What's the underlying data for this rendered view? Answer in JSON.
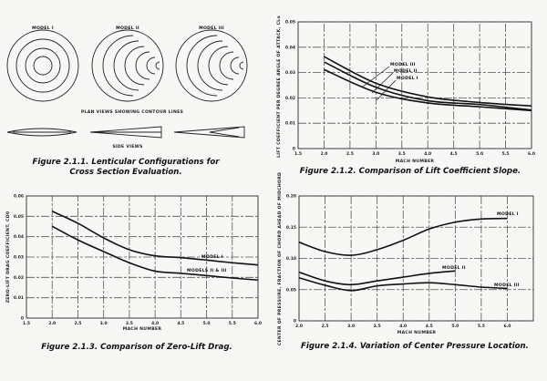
{
  "figure_2_1_1": {
    "model_labels": [
      "MODEL I",
      "MODEL II",
      "MODEL III"
    ],
    "plan_views_label": "PLAN VIEWS SHOWING CONTOUR LINES",
    "side_views_label": "SIDE VIEWS",
    "caption_line1": "Figure 2.1.1.  Lenticular Configurations for",
    "caption_line2": "Cross Section Evaluation."
  },
  "chart_data": [
    {
      "type": "line",
      "title": "Figure 2.1.2.  Comparison of Lift Coefficient Slope.",
      "xlabel": "MACH NUMBER",
      "ylabel": "LIFT COEFFICIENT PER DEGREE ANGLE OF ATTACK, CLα",
      "xlim": [
        1.5,
        6.0
      ],
      "ylim": [
        0,
        0.05
      ],
      "xticks": [
        "1.5",
        "2.0",
        "2.5",
        "3.0",
        "3.5",
        "4.0",
        "4.5",
        "5.0",
        "5.5",
        "6.0"
      ],
      "yticks": [
        "0",
        "0.01",
        "0.02",
        "0.03",
        "0.04",
        "0.05"
      ],
      "grid": true,
      "x": [
        2.0,
        3.0,
        4.0,
        5.0,
        6.0
      ],
      "series": [
        {
          "name": "MODEL III",
          "values": [
            0.0363,
            0.0258,
            0.0204,
            0.0182,
            0.0168
          ]
        },
        {
          "name": "MODEL II",
          "values": [
            0.0342,
            0.0242,
            0.0189,
            0.0174,
            0.0152
          ]
        },
        {
          "name": "MODEL I",
          "values": [
            0.0312,
            0.0222,
            0.018,
            0.0165,
            0.015
          ]
        }
      ]
    },
    {
      "type": "line",
      "title": "Figure 2.1.3.  Comparison of Zero-Lift Drag.",
      "xlabel": "MACH NUMBER",
      "ylabel": "ZERO-LIFT DRAG COEFFICIENT, CD0",
      "xlim": [
        1.5,
        6.0
      ],
      "ylim": [
        0,
        0.06
      ],
      "xticks": [
        "1.5",
        "2.0",
        "2.5",
        "3.0",
        "3.5",
        "4.0",
        "4.5",
        "5.0",
        "5.5",
        "6.0"
      ],
      "yticks": [
        "0",
        "0.01",
        "0.02",
        "0.03",
        "0.04",
        "0.05",
        "0.06"
      ],
      "grid": true,
      "x": [
        2.0,
        2.5,
        3.0,
        3.5,
        4.0,
        4.5,
        5.0,
        5.5,
        6.0
      ],
      "series": [
        {
          "name": "MODEL I",
          "values": [
            0.0525,
            0.0466,
            0.0394,
            0.0336,
            0.0306,
            0.0297,
            0.0285,
            0.0272,
            0.0261
          ]
        },
        {
          "name": "MODELS II & III",
          "values": [
            0.0451,
            0.0384,
            0.0327,
            0.0272,
            0.0231,
            0.022,
            0.0209,
            0.0197,
            0.0187
          ]
        }
      ]
    },
    {
      "type": "line",
      "title": "Figure 2.1.4.  Variation of Center Pressure Location.",
      "xlabel": "MACH NUMBER",
      "ylabel": "CENTER OF PRESSURE, FRACTION OF CHORD AHEAD OF MIDCHORD",
      "xlim": [
        2.0,
        6.5
      ],
      "ylim": [
        0,
        0.2
      ],
      "xticks": [
        "2.0",
        "2.5",
        "3.0",
        "3.5",
        "4.0",
        "4.5",
        "5.0",
        "5.5",
        "6.0"
      ],
      "yticks": [
        "0",
        "0.05",
        "0.10",
        "0.15",
        "0.20"
      ],
      "grid": true,
      "series": [
        {
          "name": "MODEL I",
          "x": [
            2.0,
            2.5,
            3.0,
            3.5,
            4.0,
            4.5,
            5.0,
            5.5,
            6.0
          ],
          "values": [
            0.126,
            0.111,
            0.105,
            0.114,
            0.129,
            0.147,
            0.158,
            0.163,
            0.164
          ]
        },
        {
          "name": "MODEL II",
          "x": [
            2.0,
            2.5,
            3.0,
            3.5,
            4.0,
            4.5,
            5.0
          ],
          "values": [
            0.078,
            0.064,
            0.058,
            0.064,
            0.07,
            0.076,
            0.08
          ]
        },
        {
          "name": "MODEL III",
          "x": [
            2.0,
            2.5,
            3.0,
            3.5,
            4.0,
            4.5,
            5.0,
            5.5,
            6.0
          ],
          "values": [
            0.069,
            0.057,
            0.0485,
            0.056,
            0.059,
            0.061,
            0.058,
            0.054,
            0.052
          ]
        }
      ]
    }
  ]
}
